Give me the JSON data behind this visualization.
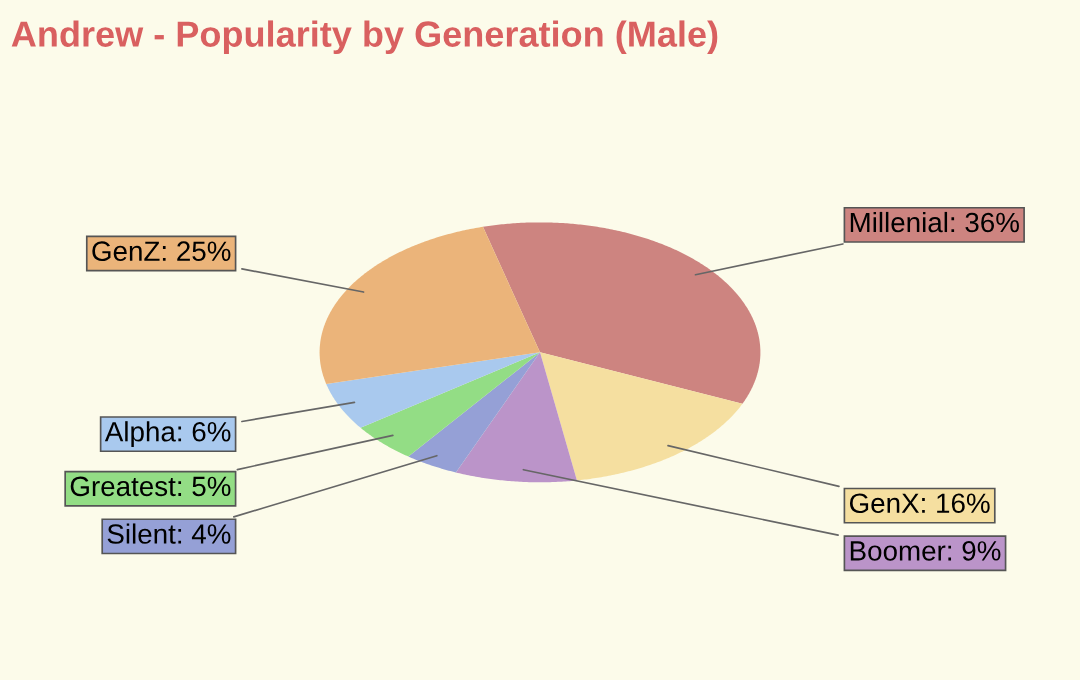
{
  "chart_data": {
    "type": "pie",
    "title": "Andrew - Popularity by Generation (Male)",
    "categories": [
      "Millenial",
      "GenX",
      "Boomer",
      "Silent",
      "Greatest",
      "Alpha",
      "GenZ"
    ],
    "values": [
      36,
      16,
      9,
      4,
      5,
      6,
      25
    ],
    "colors": [
      "#cd8480",
      "#f5dfa0",
      "#bb94c9",
      "#95a0d6",
      "#93dd85",
      "#a9c9ee",
      "#ebb47a"
    ],
    "value_labels": [
      "36%",
      "16%",
      "9%",
      "4%",
      "5%",
      "6%",
      "25%"
    ]
  }
}
